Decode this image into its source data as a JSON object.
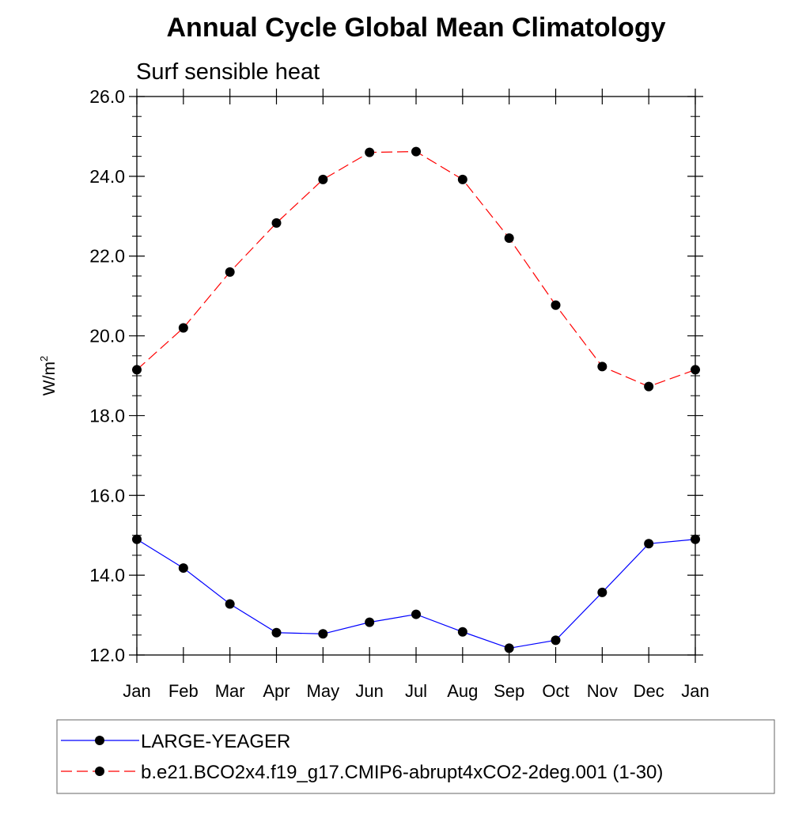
{
  "chart_data": {
    "type": "line",
    "title": "Annual Cycle Global Mean Climatology",
    "subtitle": "Surf sensible heat",
    "xlabel": "",
    "ylabel": "W/m",
    "ylabel_sup": "2",
    "categories": [
      "Jan",
      "Feb",
      "Mar",
      "Apr",
      "May",
      "Jun",
      "Jul",
      "Aug",
      "Sep",
      "Oct",
      "Nov",
      "Dec",
      "Jan"
    ],
    "ylim": [
      12.0,
      26.0
    ],
    "yticks": [
      "12.0",
      "14.0",
      "16.0",
      "18.0",
      "20.0",
      "22.0",
      "24.0",
      "26.0"
    ],
    "yminor_step": 0.5,
    "grid": false,
    "legend_position": "bottom",
    "series": [
      {
        "name": "LARGE-YEAGER",
        "color": "#0000ff",
        "dash": "solid",
        "values": [
          14.9,
          14.18,
          13.28,
          12.56,
          12.53,
          12.82,
          13.02,
          12.58,
          12.17,
          12.37,
          13.57,
          14.79,
          14.9
        ]
      },
      {
        "name": "b.e21.BCO2x4.f19_g17.CMIP6-abrupt4xCO2-2deg.001 (1-30)",
        "color": "#ff0000",
        "dash": "dashed",
        "values": [
          19.15,
          20.2,
          21.6,
          22.83,
          23.92,
          24.6,
          24.62,
          23.92,
          22.45,
          20.77,
          19.23,
          18.73,
          19.15
        ]
      }
    ]
  }
}
